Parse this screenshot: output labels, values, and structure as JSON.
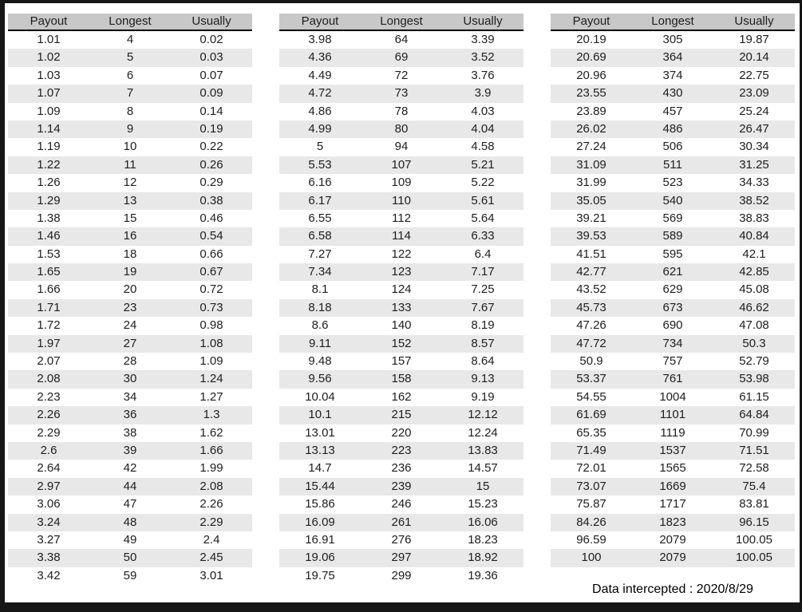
{
  "columns": [
    "Payout",
    "Longest",
    "Usually"
  ],
  "tables": [
    {
      "rows": [
        [
          "1.01",
          "4",
          "0.02"
        ],
        [
          "1.02",
          "5",
          "0.03"
        ],
        [
          "1.03",
          "6",
          "0.07"
        ],
        [
          "1.07",
          "7",
          "0.09"
        ],
        [
          "1.09",
          "8",
          "0.14"
        ],
        [
          "1.14",
          "9",
          "0.19"
        ],
        [
          "1.19",
          "10",
          "0.22"
        ],
        [
          "1.22",
          "11",
          "0.26"
        ],
        [
          "1.26",
          "12",
          "0.29"
        ],
        [
          "1.29",
          "13",
          "0.38"
        ],
        [
          "1.38",
          "15",
          "0.46"
        ],
        [
          "1.46",
          "16",
          "0.54"
        ],
        [
          "1.53",
          "18",
          "0.66"
        ],
        [
          "1.65",
          "19",
          "0.67"
        ],
        [
          "1.66",
          "20",
          "0.72"
        ],
        [
          "1.71",
          "23",
          "0.73"
        ],
        [
          "1.72",
          "24",
          "0.98"
        ],
        [
          "1.97",
          "27",
          "1.08"
        ],
        [
          "2.07",
          "28",
          "1.09"
        ],
        [
          "2.08",
          "30",
          "1.24"
        ],
        [
          "2.23",
          "34",
          "1.27"
        ],
        [
          "2.26",
          "36",
          "1.3"
        ],
        [
          "2.29",
          "38",
          "1.62"
        ],
        [
          "2.6",
          "39",
          "1.66"
        ],
        [
          "2.64",
          "42",
          "1.99"
        ],
        [
          "2.97",
          "44",
          "2.08"
        ],
        [
          "3.06",
          "47",
          "2.26"
        ],
        [
          "3.24",
          "48",
          "2.29"
        ],
        [
          "3.27",
          "49",
          "2.4"
        ],
        [
          "3.38",
          "50",
          "2.45"
        ],
        [
          "3.42",
          "59",
          "3.01"
        ]
      ]
    },
    {
      "rows": [
        [
          "3.98",
          "64",
          "3.39"
        ],
        [
          "4.36",
          "69",
          "3.52"
        ],
        [
          "4.49",
          "72",
          "3.76"
        ],
        [
          "4.72",
          "73",
          "3.9"
        ],
        [
          "4.86",
          "78",
          "4.03"
        ],
        [
          "4.99",
          "80",
          "4.04"
        ],
        [
          "5",
          "94",
          "4.58"
        ],
        [
          "5.53",
          "107",
          "5.21"
        ],
        [
          "6.16",
          "109",
          "5.22"
        ],
        [
          "6.17",
          "110",
          "5.61"
        ],
        [
          "6.55",
          "112",
          "5.64"
        ],
        [
          "6.58",
          "114",
          "6.33"
        ],
        [
          "7.27",
          "122",
          "6.4"
        ],
        [
          "7.34",
          "123",
          "7.17"
        ],
        [
          "8.1",
          "124",
          "7.25"
        ],
        [
          "8.18",
          "133",
          "7.67"
        ],
        [
          "8.6",
          "140",
          "8.19"
        ],
        [
          "9.11",
          "152",
          "8.57"
        ],
        [
          "9.48",
          "157",
          "8.64"
        ],
        [
          "9.56",
          "158",
          "9.13"
        ],
        [
          "10.04",
          "162",
          "9.19"
        ],
        [
          "10.1",
          "215",
          "12.12"
        ],
        [
          "13.01",
          "220",
          "12.24"
        ],
        [
          "13.13",
          "223",
          "13.83"
        ],
        [
          "14.7",
          "236",
          "14.57"
        ],
        [
          "15.44",
          "239",
          "15"
        ],
        [
          "15.86",
          "246",
          "15.23"
        ],
        [
          "16.09",
          "261",
          "16.06"
        ],
        [
          "16.91",
          "276",
          "18.23"
        ],
        [
          "19.06",
          "297",
          "18.92"
        ],
        [
          "19.75",
          "299",
          "19.36"
        ]
      ]
    },
    {
      "rows": [
        [
          "20.19",
          "305",
          "19.87"
        ],
        [
          "20.69",
          "364",
          "20.14"
        ],
        [
          "20.96",
          "374",
          "22.75"
        ],
        [
          "23.55",
          "430",
          "23.09"
        ],
        [
          "23.89",
          "457",
          "25.24"
        ],
        [
          "26.02",
          "486",
          "26.47"
        ],
        [
          "27.24",
          "506",
          "30.34"
        ],
        [
          "31.09",
          "511",
          "31.25"
        ],
        [
          "31.99",
          "523",
          "34.33"
        ],
        [
          "35.05",
          "540",
          "38.52"
        ],
        [
          "39.21",
          "569",
          "38.83"
        ],
        [
          "39.53",
          "589",
          "40.84"
        ],
        [
          "41.51",
          "595",
          "42.1"
        ],
        [
          "42.77",
          "621",
          "42.85"
        ],
        [
          "43.52",
          "629",
          "45.08"
        ],
        [
          "45.73",
          "673",
          "46.62"
        ],
        [
          "47.26",
          "690",
          "47.08"
        ],
        [
          "47.72",
          "734",
          "50.3"
        ],
        [
          "50.9",
          "757",
          "52.79"
        ],
        [
          "53.37",
          "761",
          "53.98"
        ],
        [
          "54.55",
          "1004",
          "61.15"
        ],
        [
          "61.69",
          "1101",
          "64.84"
        ],
        [
          "65.35",
          "1119",
          "70.99"
        ],
        [
          "71.49",
          "1537",
          "71.51"
        ],
        [
          "72.01",
          "1565",
          "72.58"
        ],
        [
          "73.07",
          "1669",
          "75.4"
        ],
        [
          "75.87",
          "1717",
          "83.81"
        ],
        [
          "84.26",
          "1823",
          "96.15"
        ],
        [
          "96.59",
          "2079",
          "100.05"
        ],
        [
          "100",
          "2079",
          "100.05"
        ]
      ]
    }
  ],
  "footer": {
    "label": "Data intercepted : 2020/8/29"
  },
  "colors": {
    "frame": "#161616",
    "header_bg": "#c8c8c8",
    "alt_row_bg": "#e8e8e8",
    "text": "#1e1e1e"
  }
}
